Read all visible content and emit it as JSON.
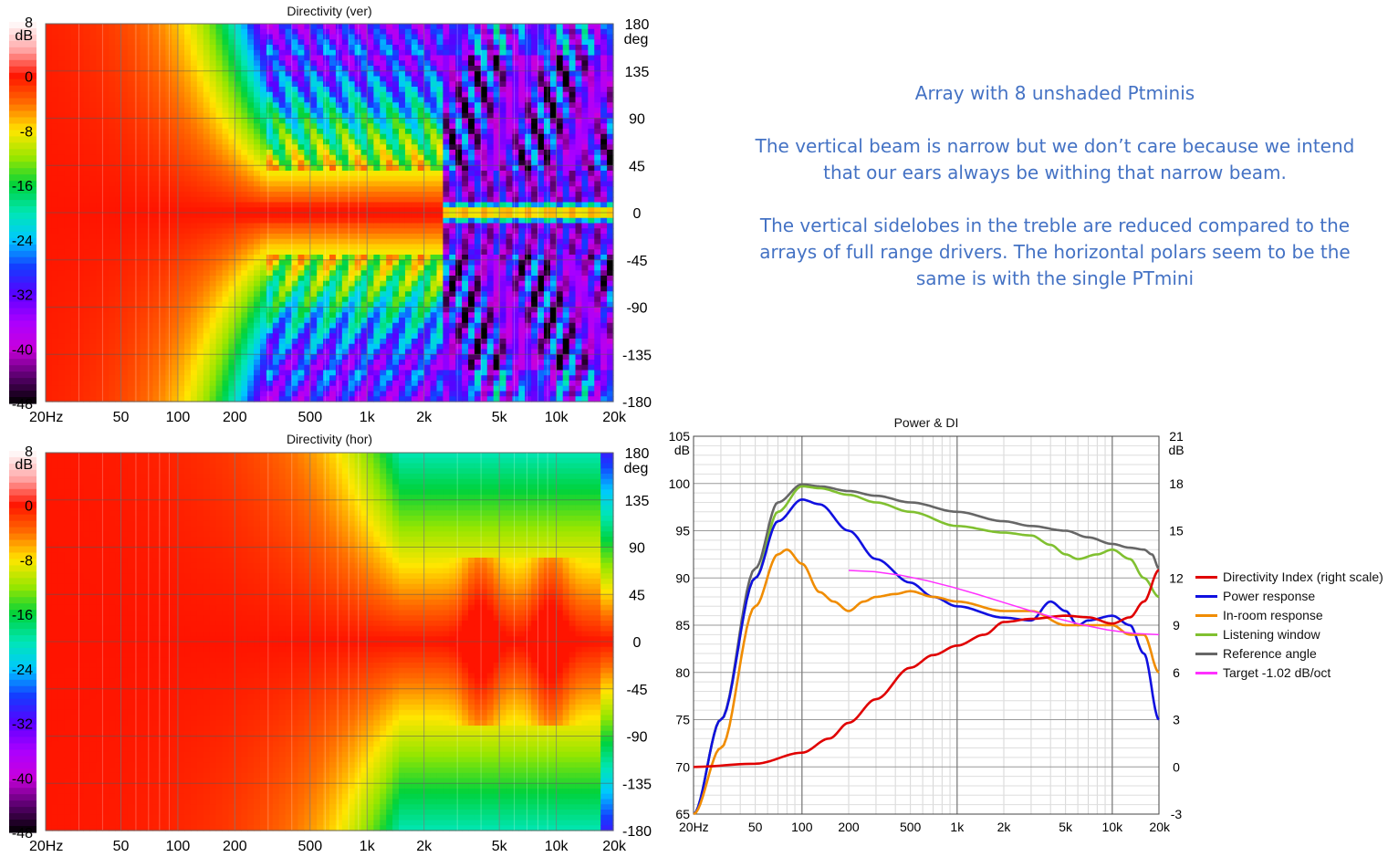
{
  "text_block": {
    "heading": "Array with 8 unshaded Ptminis",
    "para1": "The vertical beam is narrow but we don’t care because we intend that our ears always be withing that narrow beam.",
    "para2": "The vertical sidelobes in the treble are reduced compared to the arrays of full range drivers.  The horizontal polars seem to be the same is with the single PTmini"
  },
  "chart_data": [
    {
      "type": "heatmap",
      "title": "Directivity (ver)",
      "xlabel": "",
      "ylabel": "",
      "x_ticks": [
        "20Hz",
        "50",
        "100",
        "200",
        "500",
        "1k",
        "2k",
        "5k",
        "10k",
        "20k"
      ],
      "x_tick_values": [
        20,
        50,
        100,
        200,
        500,
        1000,
        2000,
        5000,
        10000,
        20000
      ],
      "xlim": [
        20,
        20000
      ],
      "y_ticks": [
        "180",
        "135",
        "90",
        "45",
        "0",
        "-45",
        "-90",
        "-135",
        "-180"
      ],
      "y_unit": "deg",
      "ylim": [
        -180,
        180
      ],
      "colorbar": {
        "unit": "dB",
        "ticks": [
          "8",
          "0",
          "-8",
          "-16",
          "-24",
          "-32",
          "-40",
          "-48"
        ],
        "range": [
          -48,
          8
        ]
      }
    },
    {
      "type": "heatmap",
      "title": "Directivity (hor)",
      "xlabel": "",
      "ylabel": "",
      "x_ticks": [
        "20Hz",
        "50",
        "100",
        "200",
        "500",
        "1k",
        "2k",
        "5k",
        "10k",
        "20k"
      ],
      "x_tick_values": [
        20,
        50,
        100,
        200,
        500,
        1000,
        2000,
        5000,
        10000,
        20000
      ],
      "xlim": [
        20,
        20000
      ],
      "y_ticks": [
        "180",
        "135",
        "90",
        "45",
        "0",
        "-45",
        "-90",
        "-135",
        "-180"
      ],
      "y_unit": "deg",
      "ylim": [
        -180,
        180
      ],
      "colorbar": {
        "unit": "dB",
        "ticks": [
          "8",
          "0",
          "-8",
          "-16",
          "-24",
          "-32",
          "-40",
          "-48"
        ],
        "range": [
          -48,
          8
        ]
      }
    },
    {
      "type": "line",
      "title": "Power & DI",
      "xlim": [
        20,
        20000
      ],
      "x_ticks": [
        "20Hz",
        "50",
        "100",
        "200",
        "500",
        "1k",
        "2k",
        "5k",
        "10k",
        "20k"
      ],
      "x_tick_values": [
        20,
        50,
        100,
        200,
        500,
        1000,
        2000,
        5000,
        10000,
        20000
      ],
      "x_scale": "log",
      "ylim": [
        65,
        105
      ],
      "y_ticks": [
        "105",
        "100",
        "95",
        "90",
        "85",
        "80",
        "75",
        "70",
        "65"
      ],
      "y_unit": "dB",
      "y2lim": [
        -3,
        21
      ],
      "y2_ticks": [
        "21",
        "18",
        "15",
        "12",
        "9",
        "6",
        "3",
        "0",
        "-3"
      ],
      "y2_unit": "dB",
      "grid": true,
      "legend_position": "right",
      "series": [
        {
          "name": "Directivity Index (right scale)",
          "color": "#e00000",
          "axis": "right",
          "x": [
            20,
            50,
            100,
            150,
            200,
            300,
            500,
            700,
            1000,
            1500,
            2000,
            3000,
            5000,
            7000,
            10000,
            13000,
            16000,
            20000
          ],
          "values": [
            0.0,
            0.2,
            0.9,
            1.8,
            2.8,
            4.3,
            6.3,
            7.1,
            7.7,
            8.4,
            9.2,
            9.4,
            9.6,
            9.5,
            9.1,
            9.5,
            10.5,
            12.5
          ]
        },
        {
          "name": "Power response",
          "color": "#1010e0",
          "axis": "left",
          "x": [
            20,
            30,
            50,
            70,
            100,
            130,
            200,
            300,
            500,
            700,
            1000,
            2000,
            3000,
            4000,
            5000,
            6000,
            7000,
            10000,
            13000,
            16000,
            20000
          ],
          "values": [
            65,
            75,
            90,
            96,
            98.3,
            97.8,
            95,
            92,
            89.5,
            88,
            87,
            85.8,
            85.5,
            87.5,
            86.5,
            85,
            85.5,
            86,
            85,
            82,
            75
          ]
        },
        {
          "name": "In-room response",
          "color": "#f08c00",
          "axis": "left",
          "x": [
            20,
            30,
            50,
            70,
            80,
            100,
            130,
            160,
            200,
            250,
            300,
            400,
            500,
            700,
            1000,
            2000,
            3000,
            5000,
            7000,
            10000,
            13000,
            16000,
            20000
          ],
          "values": [
            65,
            72,
            87,
            92.5,
            93,
            91.5,
            88.5,
            87.5,
            86.5,
            87.5,
            88,
            88.3,
            88.6,
            88,
            87.5,
            86.5,
            86.5,
            85,
            85,
            85,
            84,
            84,
            80
          ]
        },
        {
          "name": "Listening window",
          "color": "#80c030",
          "axis": "left",
          "x": [
            20,
            30,
            50,
            70,
            100,
            130,
            200,
            300,
            500,
            1000,
            2000,
            3000,
            4000,
            5000,
            6000,
            8000,
            10000,
            13000,
            16000,
            20000
          ],
          "values": [
            65,
            75,
            90,
            97,
            99.7,
            99.5,
            98.8,
            98,
            97,
            95.5,
            94.8,
            94.5,
            93.5,
            92.5,
            92,
            92.5,
            93,
            92,
            90,
            88
          ]
        },
        {
          "name": "Reference angle",
          "color": "#666666",
          "axis": "left",
          "x": [
            20,
            30,
            50,
            70,
            100,
            130,
            200,
            300,
            500,
            1000,
            2000,
            3000,
            5000,
            7000,
            10000,
            13000,
            16000,
            18000,
            20000
          ],
          "values": [
            65,
            75,
            91,
            98,
            99.9,
            99.7,
            99.2,
            98.7,
            98,
            97,
            96,
            95.5,
            95,
            94.3,
            93.6,
            93.2,
            93,
            92.5,
            91
          ]
        },
        {
          "name": "Target -1.02 dB/oct",
          "color": "#ff30ff",
          "axis": "left",
          "x": [
            200,
            20000
          ],
          "values": [
            90.8,
            84
          ]
        }
      ]
    }
  ]
}
